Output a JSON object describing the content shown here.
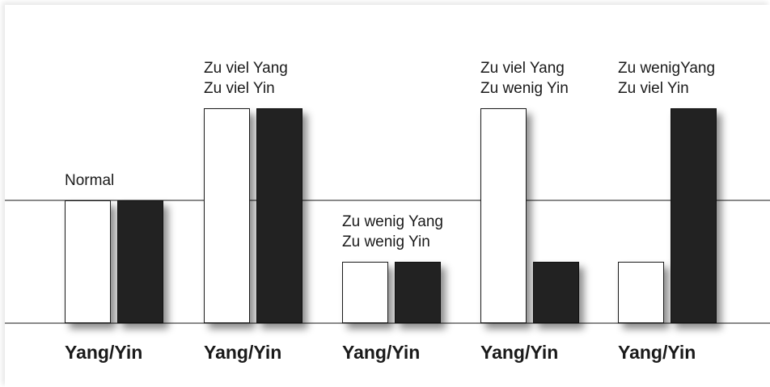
{
  "diagram": {
    "groups": [
      {
        "label": "Yang/Yin",
        "caption": [
          "Normal"
        ],
        "yang": 1.0,
        "yin": 1.0
      },
      {
        "label": "Yang/Yin",
        "caption": [
          "Zu viel Yang",
          "Zu viel Yin"
        ],
        "yang": 1.75,
        "yin": 1.75
      },
      {
        "label": "Yang/Yin",
        "caption": [
          "Zu wenig Yang",
          "Zu wenig Yin"
        ],
        "yang": 0.5,
        "yin": 0.5
      },
      {
        "label": "Yang/Yin",
        "caption": [
          "Zu viel Yang",
          "Zu wenig Yin"
        ],
        "yang": 1.75,
        "yin": 0.5
      },
      {
        "label": "Yang/Yin",
        "caption": [
          "Zu wenigYang",
          "Zu viel Yin"
        ],
        "yang": 0.5,
        "yin": 1.75
      }
    ],
    "colors": {
      "yang": "#ffffff",
      "yin": "#222222",
      "line": "#8a8a8a"
    }
  }
}
